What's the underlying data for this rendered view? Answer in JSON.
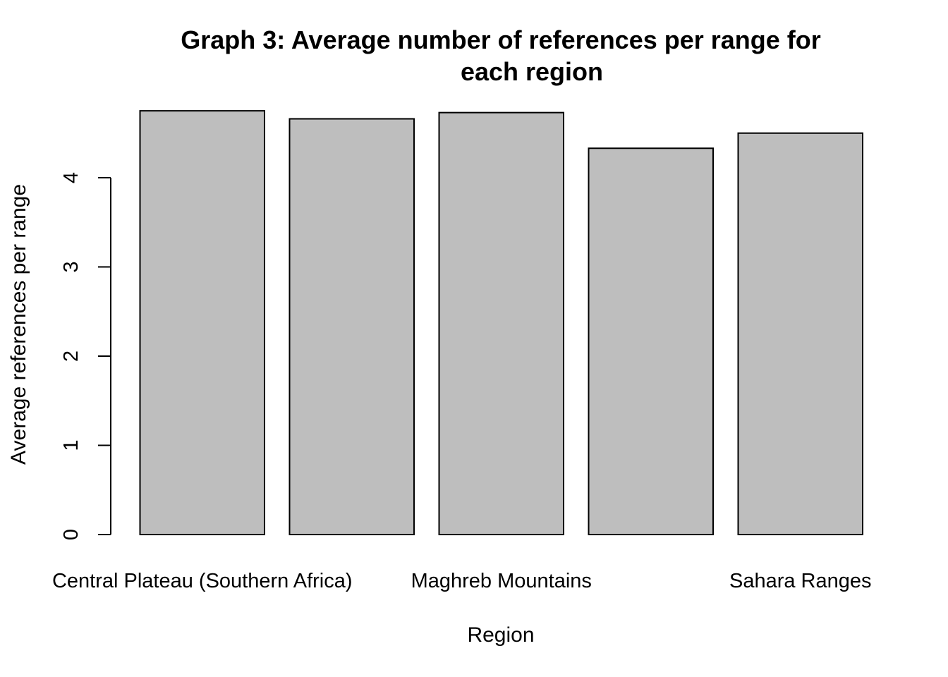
{
  "chart_data": {
    "type": "bar",
    "title_lines": [
      "Graph 3: Average number of references per range for",
      "each region"
    ],
    "xlabel": "Region",
    "ylabel": "Average references per range",
    "categories": [
      "Central Plateau (Southern Africa)",
      "",
      "Maghreb Mountains",
      "",
      "Sahara Ranges"
    ],
    "values": [
      4.75,
      4.66,
      4.73,
      4.33,
      4.5
    ],
    "ylim": [
      0,
      4.75
    ],
    "yticks": [
      0,
      1,
      2,
      3,
      4
    ],
    "grid": false,
    "legend": "none",
    "bar_color": "#bebebe",
    "edge_color": "#000000"
  }
}
